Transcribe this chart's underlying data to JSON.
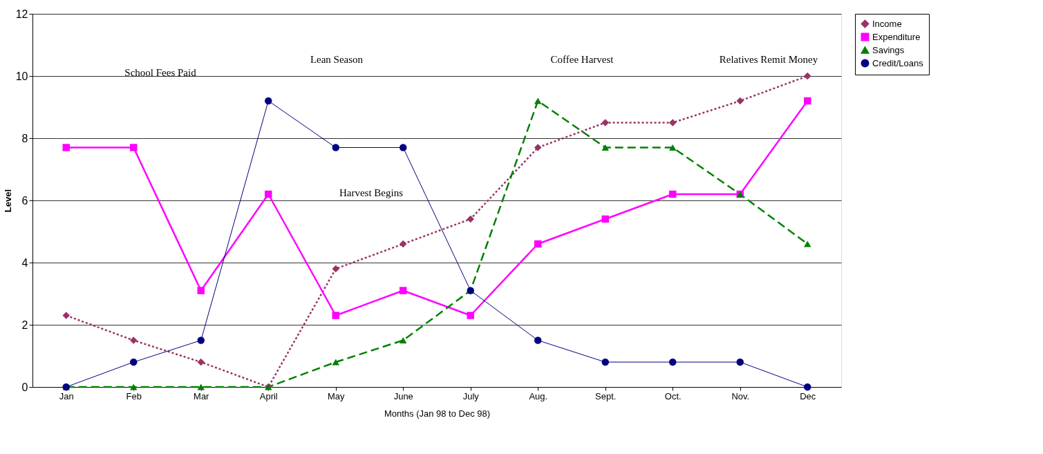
{
  "chart_data": {
    "type": "line",
    "xlabel": "Months (Jan 98 to Dec 98)",
    "ylabel": "Level",
    "categories": [
      "Jan",
      "Feb",
      "Mar",
      "April",
      "May",
      "June",
      "July",
      "Aug.",
      "Sept.",
      "Oct.",
      "Nov.",
      "Dec"
    ],
    "series": [
      {
        "name": "Income",
        "color": "#993366",
        "marker": "diamond",
        "line_style": "dotted",
        "values": [
          2.3,
          1.5,
          0.8,
          0,
          3.8,
          4.6,
          5.4,
          7.7,
          8.5,
          8.5,
          9.2,
          10
        ]
      },
      {
        "name": "Expenditure",
        "color": "#ff00ff",
        "marker": "square",
        "line_style": "solid",
        "values": [
          7.7,
          7.7,
          3.1,
          6.2,
          2.3,
          3.1,
          2.3,
          4.6,
          5.4,
          6.2,
          6.2,
          9.2
        ]
      },
      {
        "name": "Savings",
        "color": "#008000",
        "marker": "triangle",
        "line_style": "dashed",
        "values": [
          0,
          0,
          0,
          0,
          0.8,
          1.5,
          3.1,
          9.2,
          7.7,
          7.7,
          6.2,
          4.6
        ]
      },
      {
        "name": "Credit/Loans",
        "color": "#000080",
        "marker": "circle",
        "line_style": "solid",
        "values": [
          0,
          0.8,
          1.5,
          9.2,
          7.7,
          7.7,
          3.1,
          1.5,
          0.8,
          0.8,
          0.8,
          0
        ]
      }
    ],
    "ylim": [
      0,
      12
    ],
    "yticks": [
      0,
      2,
      4,
      6,
      8,
      10,
      12
    ],
    "grid": "y",
    "legend": "right",
    "annotations": [
      "School Fees Paid",
      "Lean Season",
      "Coffee Harvest",
      "Relatives Remit Money",
      "Harvest Begins"
    ]
  }
}
